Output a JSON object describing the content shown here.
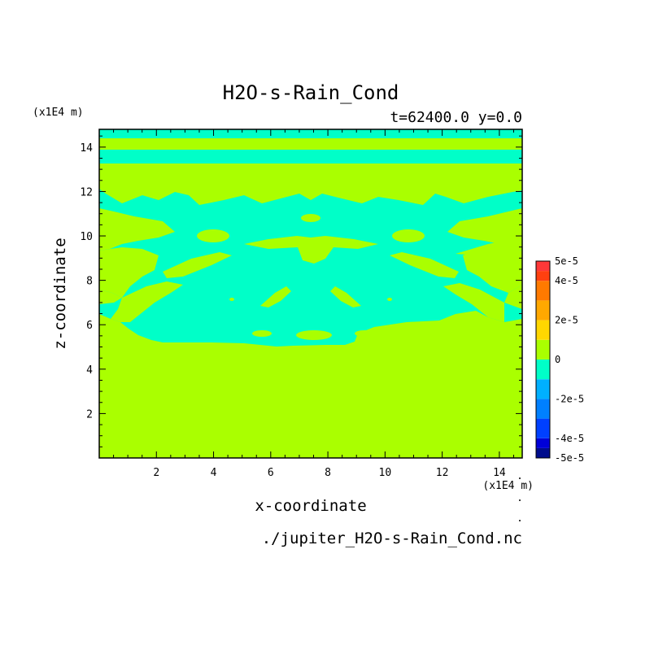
{
  "chart_data": {
    "type": "heatmap",
    "title": "H2O-s-Rain_Cond",
    "subtitle": "t=62400.0 y=0.0",
    "xlabel": "x-coordinate",
    "ylabel": "z-coordinate",
    "x_unit": "(x1E4 m)",
    "y_unit": "(x1E4 m)",
    "source_file": "./jupiter_H2O-s-Rain_Cond.nc",
    "xlim": [
      0,
      14.8
    ],
    "ylim": [
      0,
      14.8
    ],
    "x_ticks": [
      "2",
      "4",
      "6",
      "8",
      "10",
      "12",
      "14"
    ],
    "y_ticks": [
      "2",
      "4",
      "6",
      "8",
      "10",
      "12",
      "14"
    ],
    "colorbar": {
      "labels": [
        {
          "text": "5e-5",
          "value": 5e-05
        },
        {
          "text": "4e-5",
          "value": 4e-05
        },
        {
          "text": "2e-5",
          "value": 2e-05
        },
        {
          "text": "0",
          "value": 0
        },
        {
          "text": "-2e-5",
          "value": -2e-05
        },
        {
          "text": "-4e-5",
          "value": -4e-05
        },
        {
          "text": "-5e-5",
          "value": -5e-05
        }
      ],
      "levels": [
        {
          "min": -5e-05,
          "max": -4.5e-05,
          "color": "#000c8c"
        },
        {
          "min": -4.5e-05,
          "max": -4e-05,
          "color": "#0000d8"
        },
        {
          "min": -4e-05,
          "max": -3e-05,
          "color": "#0040ff"
        },
        {
          "min": -3e-05,
          "max": -2e-05,
          "color": "#0080ff"
        },
        {
          "min": -2e-05,
          "max": -1e-05,
          "color": "#00b0ff"
        },
        {
          "min": -1e-05,
          "max": 0,
          "color": "#00ffc8"
        },
        {
          "min": 0,
          "max": 1e-05,
          "color": "#aaff00"
        },
        {
          "min": 1e-05,
          "max": 2e-05,
          "color": "#ffd700"
        },
        {
          "min": 2e-05,
          "max": 3e-05,
          "color": "#ffa800"
        },
        {
          "min": 3e-05,
          "max": 4e-05,
          "color": "#ff7a00"
        },
        {
          "min": 4e-05,
          "max": 4.5e-05,
          "color": "#ff4010"
        },
        {
          "min": 4.5e-05,
          "max": 5e-05,
          "color": "#ff3838"
        }
      ]
    },
    "field": {
      "background_color": "#aaff00",
      "negative_color": "#00ffc8",
      "description_of_regions": "Negative (cyan) regions in z 5.2-14.8; positive (green) elsewhere",
      "negative_regions": [
        {
          "band": "top",
          "x": [
            0,
            14.8
          ],
          "z": [
            14.3,
            14.8
          ]
        },
        {
          "band": "stripe",
          "x": [
            0,
            14.8
          ],
          "z": [
            13.5,
            14.0
          ]
        },
        {
          "band": "main",
          "x": [
            0,
            14.8
          ],
          "z": [
            5.2,
            12.2
          ]
        }
      ]
    }
  }
}
